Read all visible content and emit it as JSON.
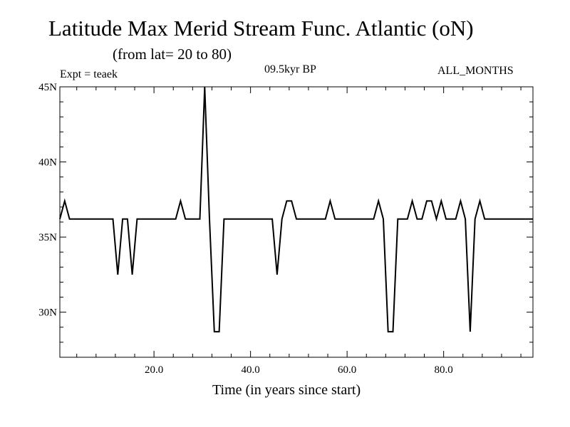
{
  "chart_data": {
    "type": "line",
    "title": "Latitude Max Merid Stream Func. Atlantic (oN)",
    "subtitle": "(from lat= 20 to 80)",
    "annotations": {
      "left": "Expt = teaek",
      "center": "09.5kyr BP",
      "right": "ALL_MONTHS"
    },
    "xlabel": "Time (in years since start)",
    "ylabel": "",
    "xlim": [
      0.5,
      98.5
    ],
    "ylim": [
      27,
      45
    ],
    "x_ticks": [
      20,
      40,
      60,
      80
    ],
    "x_tick_labels": [
      "20.0",
      "40.0",
      "60.0",
      "80.0"
    ],
    "y_ticks": [
      30,
      35,
      40,
      45
    ],
    "y_tick_labels": [
      "30N",
      "35N",
      "40N",
      "45N"
    ],
    "grid": false,
    "legend": "none",
    "line_color": "#000000",
    "series": [
      {
        "x": [
          0.5,
          1.5,
          2.5,
          3.5,
          4.5,
          5.5,
          6.5,
          7.5,
          8.5,
          9.5,
          10.5,
          11.5,
          12.5,
          13.5,
          14.5,
          15.5,
          16.5,
          17.5,
          18.5,
          19.5,
          20.5,
          21.5,
          22.5,
          23.5,
          24.5,
          25.5,
          26.5,
          27.5,
          28.5,
          29.5,
          30.5,
          31.5,
          32.5,
          33.5,
          34.5,
          35.5,
          36.5,
          37.5,
          38.5,
          39.5,
          40.5,
          41.5,
          42.5,
          43.5,
          44.5,
          45.5,
          46.5,
          47.5,
          48.5,
          49.5,
          50.5,
          51.5,
          52.5,
          53.5,
          54.5,
          55.5,
          56.5,
          57.5,
          58.5,
          59.5,
          60.5,
          61.5,
          62.5,
          63.5,
          64.5,
          65.5,
          66.5,
          67.5,
          68.5,
          69.5,
          70.5,
          71.5,
          72.5,
          73.5,
          74.5,
          75.5,
          76.5,
          77.5,
          78.5,
          79.5,
          80.5,
          81.5,
          82.5,
          83.5,
          84.5,
          85.5,
          86.5,
          87.5,
          88.5,
          89.5,
          90.5,
          91.5,
          92.5,
          93.5,
          94.5,
          95.5,
          96.5,
          97.5,
          98.5
        ],
        "values": [
          36.2,
          37.4,
          36.2,
          36.2,
          36.2,
          36.2,
          36.2,
          36.2,
          36.2,
          36.2,
          36.2,
          36.2,
          32.5,
          36.2,
          36.2,
          32.5,
          36.2,
          36.2,
          36.2,
          36.2,
          36.2,
          36.2,
          36.2,
          36.2,
          36.2,
          37.4,
          36.2,
          36.2,
          36.2,
          36.2,
          45.0,
          36.2,
          28.7,
          28.7,
          36.2,
          36.2,
          36.2,
          36.2,
          36.2,
          36.2,
          36.2,
          36.2,
          36.2,
          36.2,
          36.2,
          32.5,
          36.2,
          37.4,
          37.4,
          36.2,
          36.2,
          36.2,
          36.2,
          36.2,
          36.2,
          36.2,
          37.4,
          36.2,
          36.2,
          36.2,
          36.2,
          36.2,
          36.2,
          36.2,
          36.2,
          36.2,
          37.4,
          36.2,
          28.7,
          28.7,
          36.2,
          36.2,
          36.2,
          37.4,
          36.2,
          36.2,
          37.4,
          37.4,
          36.2,
          37.4,
          36.2,
          36.2,
          36.2,
          37.4,
          36.2,
          28.7,
          36.2,
          37.4,
          36.2,
          36.2,
          36.2,
          36.2,
          36.2,
          36.2,
          36.2,
          36.2,
          36.2,
          36.2,
          36.2
        ]
      }
    ]
  }
}
